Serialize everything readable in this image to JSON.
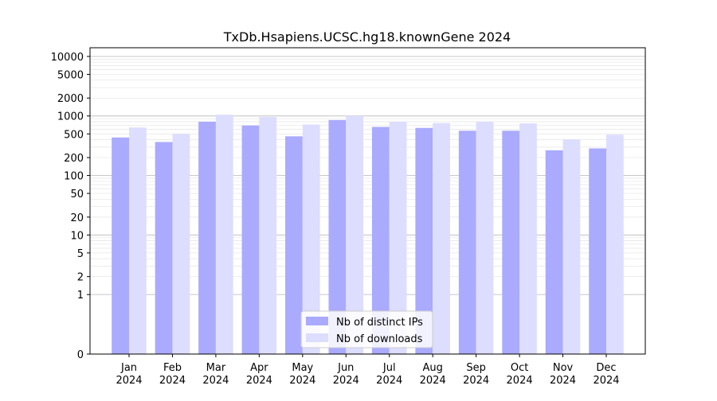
{
  "chart_data": {
    "type": "bar",
    "title": "TxDb.Hsapiens.UCSC.hg18.knownGene 2024",
    "xlabel": "",
    "ylabel": "",
    "y_scale": "symlog",
    "ylim": [
      0,
      14000
    ],
    "y_ticks": [
      0,
      1,
      2,
      5,
      10,
      20,
      50,
      100,
      200,
      500,
      1000,
      2000,
      5000,
      10000
    ],
    "grid": "horizontal",
    "legend_position": "bottom-center",
    "categories": [
      {
        "month": "Jan",
        "year": "2024"
      },
      {
        "month": "Feb",
        "year": "2024"
      },
      {
        "month": "Mar",
        "year": "2024"
      },
      {
        "month": "Apr",
        "year": "2024"
      },
      {
        "month": "May",
        "year": "2024"
      },
      {
        "month": "Jun",
        "year": "2024"
      },
      {
        "month": "Jul",
        "year": "2024"
      },
      {
        "month": "Aug",
        "year": "2024"
      },
      {
        "month": "Sep",
        "year": "2024"
      },
      {
        "month": "Oct",
        "year": "2024"
      },
      {
        "month": "Nov",
        "year": "2024"
      },
      {
        "month": "Dec",
        "year": "2024"
      }
    ],
    "series": [
      {
        "name": "Nb of distinct IPs",
        "color": "#aaaaff",
        "values": [
          435,
          365,
          800,
          690,
          455,
          855,
          655,
          630,
          565,
          565,
          265,
          285
        ]
      },
      {
        "name": "Nb of downloads",
        "color": "#ddddff",
        "values": [
          640,
          495,
          1050,
          960,
          720,
          1000,
          800,
          760,
          800,
          750,
          405,
          485
        ]
      }
    ]
  }
}
